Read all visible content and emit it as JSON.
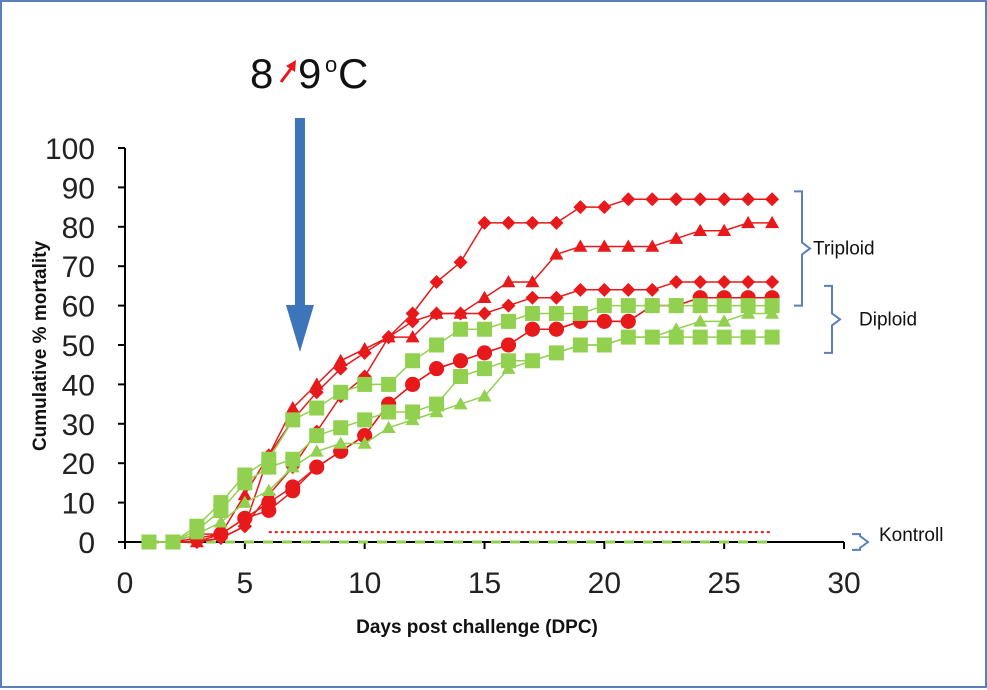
{
  "colors": {
    "triploid": "#e8191b",
    "diploid": "#92d050",
    "arrow": "#3d75bb",
    "bracket": "#5b7fb8",
    "temp_arrow": "#e8191b"
  },
  "annotation": {
    "temp_from": "8",
    "temp_to": "9",
    "unit": "oC",
    "arrow_day": 7.3,
    "temp_arrow_icon": "arrow-up-right-icon",
    "down_arrow_icon": "arrow-down-icon"
  },
  "brackets": {
    "triploid": {
      "label": "Triploid",
      "range": [
        60,
        89
      ]
    },
    "diploid": {
      "label": "Diploid",
      "range": [
        48,
        65
      ]
    },
    "control": {
      "label": "Kontroll",
      "range": [
        -2,
        2
      ]
    }
  },
  "chart_data": {
    "type": "line",
    "xlabel": "Days post challenge (DPC)",
    "ylabel": "Cumulative % mortality",
    "xlim": [
      0,
      30
    ],
    "ylim": [
      0,
      100
    ],
    "xticks": [
      "0",
      "5",
      "10",
      "15",
      "20",
      "25",
      "30"
    ],
    "yticks": [
      "0",
      "10",
      "20",
      "30",
      "40",
      "50",
      "60",
      "70",
      "80",
      "90",
      "100"
    ],
    "grid": false,
    "legend": "none",
    "series": [
      {
        "group": "triploid",
        "marker": "diamond",
        "x": [
          1,
          2,
          3,
          4,
          5,
          6,
          7,
          8,
          9,
          10,
          11,
          12,
          13,
          14,
          15,
          16,
          17,
          18,
          19,
          20,
          21,
          22,
          23,
          24,
          25,
          26,
          27
        ],
        "y": [
          0,
          0,
          0,
          1,
          4,
          22,
          31,
          38,
          44,
          48,
          52,
          58,
          66,
          71,
          81,
          81,
          81,
          81,
          85,
          85,
          87,
          87,
          87,
          87,
          87,
          87,
          87
        ]
      },
      {
        "group": "triploid",
        "marker": "triangle",
        "x": [
          1,
          2,
          3,
          4,
          5,
          6,
          7,
          8,
          9,
          10,
          11,
          12,
          13,
          14,
          15,
          16,
          17,
          18,
          19,
          20,
          21,
          22,
          23,
          24,
          25,
          26,
          27
        ],
        "y": [
          0,
          0,
          0,
          2,
          12,
          22,
          34,
          40,
          46,
          49,
          52,
          52,
          58,
          58,
          62,
          66,
          66,
          73,
          75,
          75,
          75,
          75,
          77,
          79,
          79,
          81,
          81
        ]
      },
      {
        "group": "triploid",
        "marker": "diamond",
        "x": [
          1,
          2,
          3,
          4,
          5,
          6,
          7,
          8,
          9,
          10,
          11,
          12,
          13,
          14,
          15,
          16,
          17,
          18,
          19,
          20,
          21,
          22,
          23,
          24,
          25,
          26,
          27
        ],
        "y": [
          0,
          0,
          0,
          1,
          4,
          12,
          19,
          28,
          37,
          42,
          52,
          56,
          58,
          58,
          58,
          60,
          62,
          62,
          64,
          64,
          64,
          64,
          66,
          66,
          66,
          66,
          66
        ]
      },
      {
        "group": "triploid",
        "marker": "circle",
        "x": [
          1,
          2,
          3,
          4,
          5,
          6,
          7,
          8,
          9,
          10,
          11,
          12,
          13,
          14,
          15,
          16,
          17,
          18,
          19,
          20,
          21,
          22,
          23,
          24,
          25,
          26,
          27
        ],
        "y": [
          0,
          0,
          2,
          2,
          6,
          10,
          14,
          19,
          23,
          27,
          35,
          40,
          44,
          46,
          48,
          50,
          54,
          54,
          56,
          56,
          56,
          60,
          60,
          62,
          62,
          62,
          62
        ]
      },
      {
        "group": "triploid",
        "marker": "circle",
        "x": [
          1,
          2,
          3,
          4,
          5,
          6,
          7,
          8,
          9,
          10,
          11,
          12,
          13,
          14,
          15,
          16,
          17,
          18,
          19,
          20,
          21,
          22,
          23,
          24,
          25,
          26,
          27
        ],
        "y": [
          0,
          0,
          1,
          2,
          6,
          8,
          13,
          19,
          23,
          27,
          35,
          40,
          44,
          46,
          48,
          50,
          54,
          54,
          56,
          56,
          56,
          60,
          60,
          62,
          62,
          62,
          62
        ]
      },
      {
        "group": "diploid",
        "marker": "square",
        "x": [
          1,
          2,
          3,
          4,
          5,
          6,
          7,
          8,
          9,
          10,
          11,
          12,
          13,
          14,
          15,
          16,
          17,
          18,
          19,
          20,
          21,
          22,
          23,
          24,
          25,
          26,
          27
        ],
        "y": [
          0,
          0,
          4,
          10,
          17,
          21,
          31,
          34,
          38,
          40,
          40,
          46,
          50,
          54,
          54,
          56,
          58,
          58,
          58,
          60,
          60,
          60,
          60,
          60,
          60,
          60,
          60
        ]
      },
      {
        "group": "diploid",
        "marker": "square",
        "x": [
          1,
          2,
          3,
          4,
          5,
          6,
          7,
          8,
          9,
          10,
          11,
          12,
          13,
          14,
          15,
          16,
          17,
          18,
          19,
          20,
          21,
          22,
          23,
          24,
          25,
          26,
          27
        ],
        "y": [
          0,
          0,
          3,
          8,
          15,
          19,
          21,
          27,
          29,
          31,
          33,
          33,
          35,
          42,
          44,
          46,
          46,
          48,
          50,
          50,
          52,
          52,
          52,
          52,
          52,
          52,
          52
        ]
      },
      {
        "group": "diploid",
        "marker": "triangle",
        "x": [
          1,
          2,
          3,
          4,
          5,
          6,
          7,
          8,
          9,
          10,
          11,
          12,
          13,
          14,
          15,
          16,
          17,
          18,
          19,
          20,
          21,
          22,
          23,
          24,
          25,
          26,
          27
        ],
        "y": [
          0,
          0,
          2,
          5,
          10,
          13,
          19,
          23,
          25,
          25,
          29,
          31,
          33,
          35,
          37,
          44,
          46,
          48,
          50,
          50,
          52,
          52,
          54,
          56,
          56,
          58,
          58
        ]
      },
      {
        "group": "triploid",
        "marker": "none",
        "dash": "dotted",
        "x": [
          6,
          27
        ],
        "y": [
          2.5,
          2.5
        ]
      },
      {
        "group": "diploid",
        "marker": "none",
        "dash": "dashed",
        "x": [
          1,
          27
        ],
        "y": [
          0,
          0
        ]
      }
    ]
  }
}
